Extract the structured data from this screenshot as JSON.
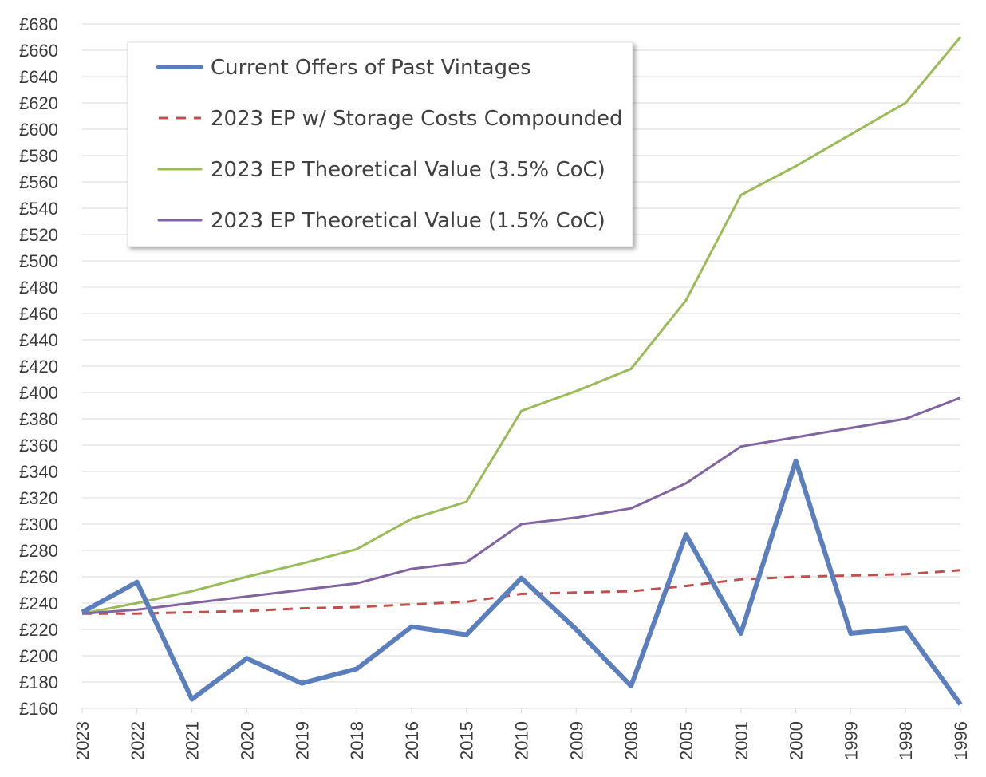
{
  "chart_data": {
    "type": "line",
    "title": "",
    "xlabel": "",
    "ylabel": "",
    "categories": [
      "2023",
      "2022",
      "2021",
      "2020",
      "2019",
      "2018",
      "2016",
      "2015",
      "2010",
      "2009",
      "2008",
      "2005",
      "2001",
      "2000",
      "1999",
      "1998",
      "1996"
    ],
    "ylim": [
      160,
      680
    ],
    "ytick_step": 20,
    "ytick_prefix": "£",
    "grid": "horizontal",
    "legend_position": "top-left",
    "series": [
      {
        "name": "Current Offers of Past Vintages",
        "color": "#5b7fbd",
        "style": "solid-thick",
        "values": [
          233,
          256,
          167,
          198,
          179,
          190,
          222,
          216,
          259,
          220,
          177,
          292,
          217,
          348,
          217,
          221,
          163
        ]
      },
      {
        "name": "2023 EP w/ Storage Costs Compounded",
        "color": "#c0504d",
        "style": "dashed",
        "values": [
          232,
          232,
          233,
          234,
          236,
          237,
          239,
          241,
          247,
          248,
          249,
          253,
          258,
          260,
          261,
          262,
          265
        ]
      },
      {
        "name": "2023 EP Theoretical Value (3.5% CoC)",
        "color": "#9bbb59",
        "style": "solid",
        "values": [
          232,
          240,
          249,
          260,
          270,
          281,
          304,
          317,
          386,
          401,
          418,
          470,
          550,
          572,
          596,
          620,
          670
        ]
      },
      {
        "name": "2023 EP Theoretical Value (1.5% CoC)",
        "color": "#8064a2",
        "style": "solid",
        "values": [
          232,
          235,
          240,
          245,
          250,
          255,
          266,
          271,
          300,
          305,
          312,
          331,
          359,
          366,
          373,
          380,
          396
        ]
      }
    ]
  }
}
